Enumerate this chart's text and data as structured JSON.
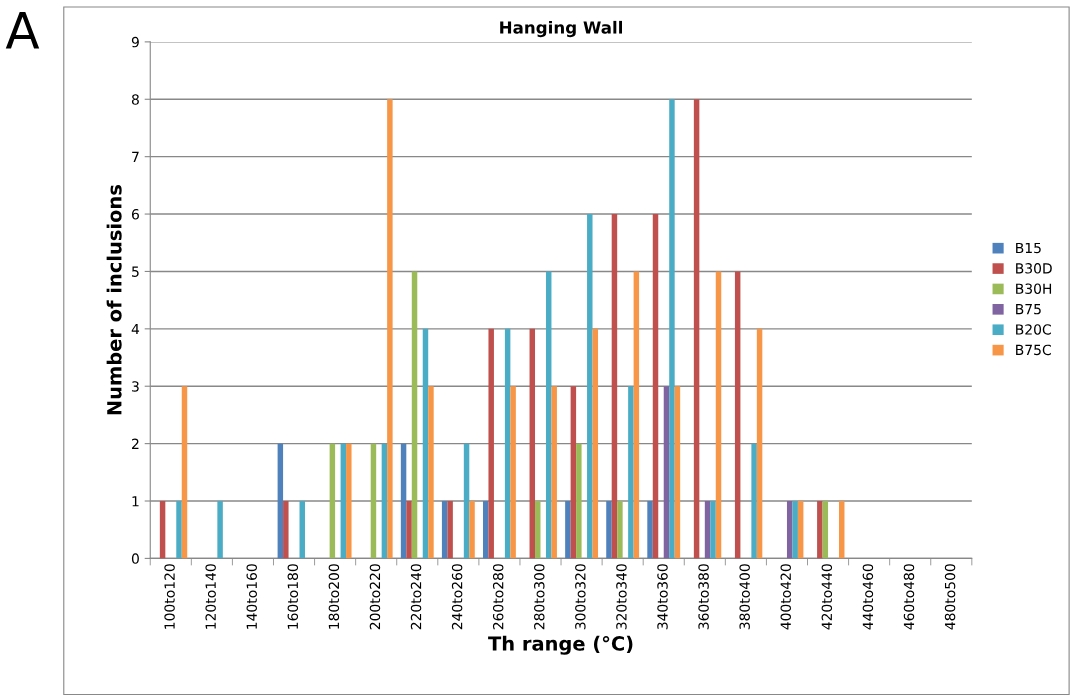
{
  "chart_data": {
    "type": "bar",
    "title": "Hanging Wall",
    "xlabel": "Th range (°C)",
    "ylabel": "Number of inclusions",
    "annotations": [
      "A"
    ],
    "categories": [
      "100to120",
      "120to140",
      "140to160",
      "160to180",
      "180to200",
      "200to220",
      "220to240",
      "240to260",
      "260to280",
      "280to300",
      "300to320",
      "320to340",
      "340to360",
      "360to380",
      "380to400",
      "400to420",
      "420to440",
      "440to460",
      "460to480",
      "480to500"
    ],
    "series": [
      {
        "name": "B15",
        "color": "#4f81bd",
        "values": [
          0,
          0,
          0,
          2,
          0,
          0,
          2,
          1,
          1,
          0,
          1,
          1,
          1,
          0,
          0,
          0,
          0,
          0,
          0,
          0
        ]
      },
      {
        "name": "B30D",
        "color": "#c0504d",
        "values": [
          1,
          0,
          0,
          1,
          0,
          0,
          1,
          1,
          4,
          4,
          3,
          6,
          6,
          8,
          5,
          0,
          1,
          0,
          0,
          0
        ]
      },
      {
        "name": "B30H",
        "color": "#9bbb59",
        "values": [
          0,
          0,
          0,
          0,
          2,
          2,
          5,
          0,
          0,
          1,
          2,
          1,
          0,
          0,
          0,
          0,
          1,
          0,
          0,
          0
        ]
      },
      {
        "name": "B75",
        "color": "#8064a2",
        "values": [
          0,
          0,
          0,
          0,
          0,
          0,
          0,
          0,
          0,
          0,
          0,
          0,
          3,
          1,
          0,
          1,
          0,
          0,
          0,
          0
        ]
      },
      {
        "name": "B20C",
        "color": "#4bacc6",
        "values": [
          1,
          1,
          0,
          1,
          2,
          2,
          4,
          2,
          4,
          5,
          6,
          3,
          8,
          1,
          2,
          1,
          0,
          0,
          0,
          0
        ]
      },
      {
        "name": "B75C",
        "color": "#f79646",
        "values": [
          3,
          0,
          0,
          0,
          2,
          8,
          3,
          1,
          3,
          3,
          4,
          5,
          3,
          5,
          4,
          1,
          1,
          0,
          0,
          0
        ]
      }
    ],
    "ylim": [
      0,
      9
    ],
    "yticks": [
      0,
      1,
      2,
      3,
      4,
      5,
      6,
      7,
      8,
      9
    ],
    "grid": "y",
    "legend": "right"
  }
}
